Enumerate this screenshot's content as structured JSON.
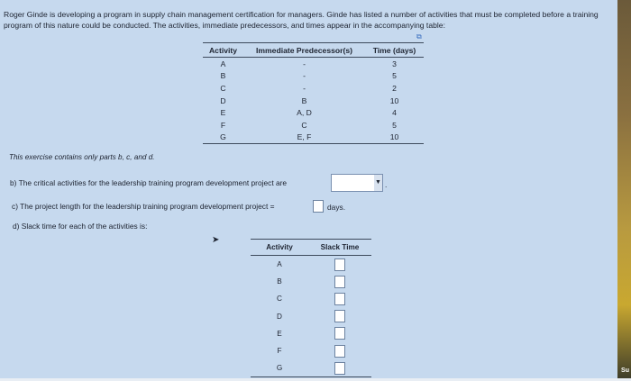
{
  "intro": "Roger Ginde is developing a program in supply chain management certification for managers. Ginde has listed a number of activities that must be completed before a training program of this nature could be conducted. The activities, immediate predecessors, and times appear in the accompanying table:",
  "table": {
    "headers": [
      "Activity",
      "Immediate Predecessor(s)",
      "Time (days)"
    ],
    "rows": [
      [
        "A",
        "-",
        "3"
      ],
      [
        "B",
        "-",
        "5"
      ],
      [
        "C",
        "-",
        "2"
      ],
      [
        "D",
        "B",
        "10"
      ],
      [
        "E",
        "A, D",
        "4"
      ],
      [
        "F",
        "C",
        "5"
      ],
      [
        "G",
        "E, F",
        "10"
      ]
    ]
  },
  "note": "This exercise contains only parts b, c, and d.",
  "b": {
    "text": "b) The critical activities for the leadership training program development project are",
    "value": ""
  },
  "c": {
    "text": "c) The project length for the leadership training program development project =",
    "unit": "days."
  },
  "d": {
    "text": "d) Slack time for each of the activities is:"
  },
  "slack": {
    "headers": [
      "Activity",
      "Slack Time"
    ],
    "rows": [
      "A",
      "B",
      "C",
      "D",
      "E",
      "F",
      "G"
    ]
  },
  "corner": "Su"
}
